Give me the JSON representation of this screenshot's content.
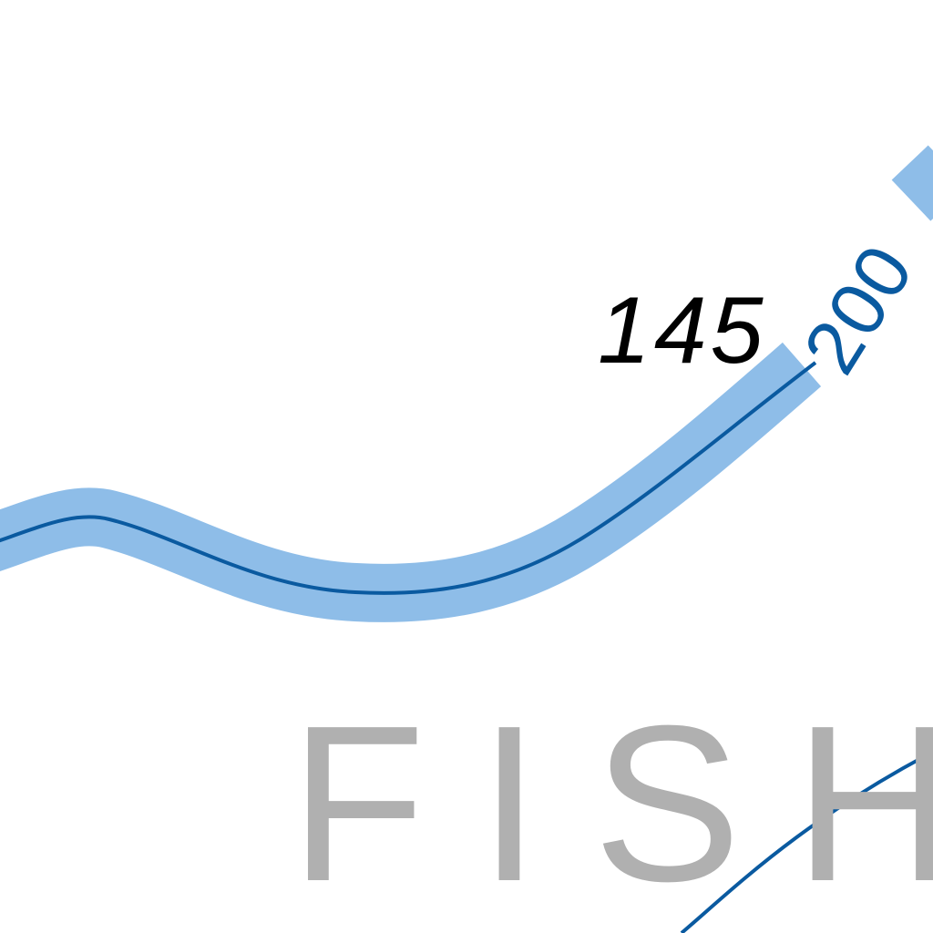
{
  "map": {
    "colors": {
      "background": "#ffffff",
      "river_fill": "#8ebde8",
      "river_centerline": "#0a5aa0",
      "contour_line": "#0a5aa0",
      "contour_label": "#0a5aa0",
      "number_label": "#000000",
      "area_label": "#b0b0b0"
    },
    "labels": {
      "elevation_number": "145",
      "contour_value": "200",
      "area_name": "FISH"
    }
  }
}
